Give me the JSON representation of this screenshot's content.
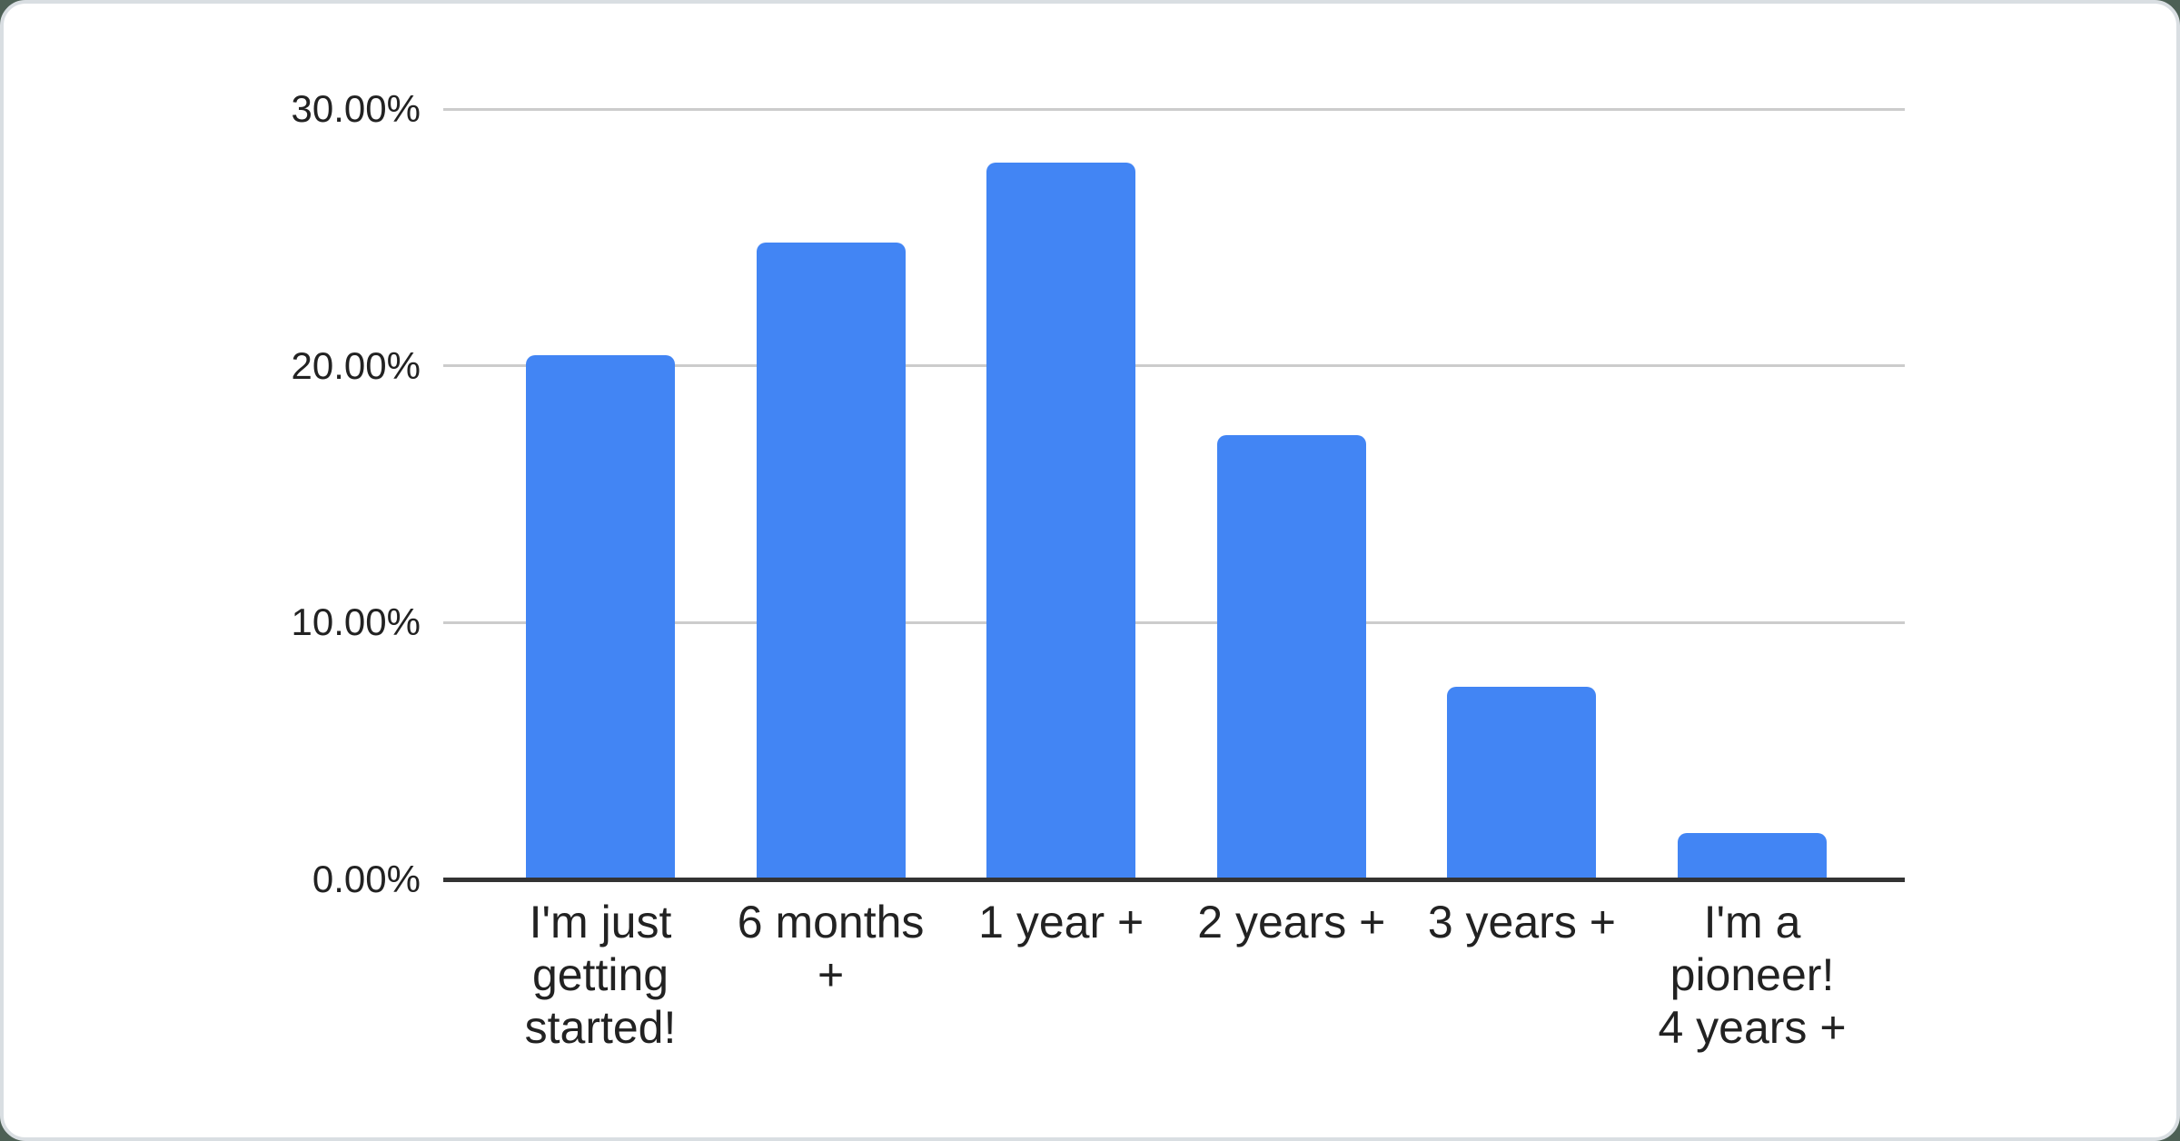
{
  "chart_data": {
    "type": "bar",
    "title": "",
    "xlabel": "",
    "ylabel": "",
    "categories": [
      "I'm just\ngetting\nstarted!",
      "6 months\n+",
      "1 year +",
      "2 years +",
      "3 years +",
      "I'm a\npioneer!\n4 years +"
    ],
    "values": [
      20.4,
      24.8,
      27.9,
      17.3,
      7.5,
      1.8
    ],
    "ylim": [
      0,
      30
    ],
    "yticks": [
      {
        "value": 0,
        "label": "0.00%"
      },
      {
        "value": 10,
        "label": "10.00%"
      },
      {
        "value": 20,
        "label": "20.00%"
      },
      {
        "value": 30,
        "label": "30.00%"
      }
    ],
    "grid": true,
    "legend": "none",
    "bar_color": "#4285f4"
  },
  "colors": {
    "bar": "#4285f4",
    "gridline": "#cccccc",
    "axis_line": "#333333",
    "text": "#222222",
    "card_background": "#ffffff",
    "card_edge_ring": "#d9dee2",
    "page_background": "#4d6055"
  }
}
